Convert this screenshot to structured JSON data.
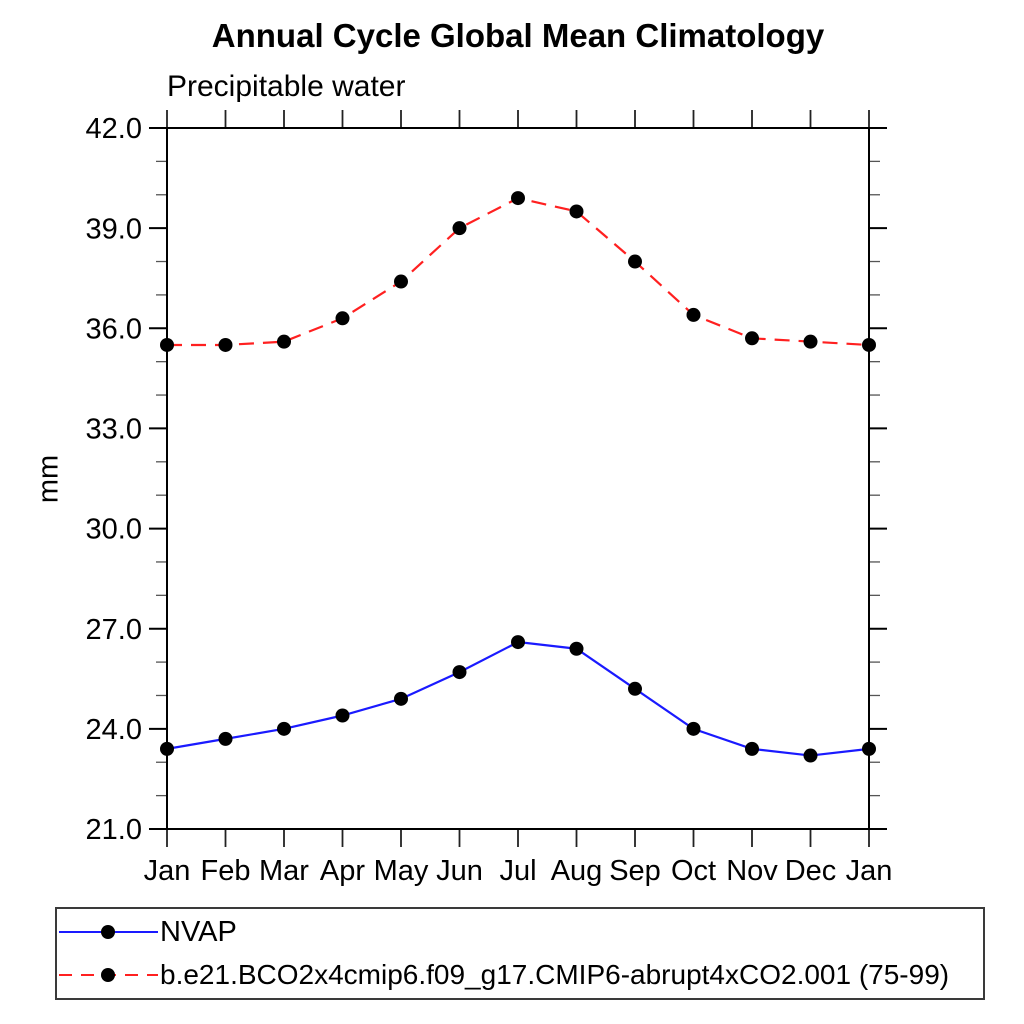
{
  "chart_data": {
    "type": "line",
    "title": "Annual Cycle Global Mean Climatology",
    "subtitle": "Precipitable water",
    "ylabel": "mm",
    "xlabel": "",
    "x_categories": [
      "Jan",
      "Feb",
      "Mar",
      "Apr",
      "May",
      "Jun",
      "Jul",
      "Aug",
      "Sep",
      "Oct",
      "Nov",
      "Dec",
      "Jan"
    ],
    "ylim": [
      21.0,
      42.0
    ],
    "y_major_ticks": [
      21.0,
      24.0,
      27.0,
      30.0,
      33.0,
      36.0,
      39.0,
      42.0
    ],
    "y_minor_step": 1.0,
    "grid": false,
    "legend_position": "bottom",
    "axis_color": "#000000",
    "minor_tick_color": "#555555",
    "series": [
      {
        "name": "NVAP",
        "color": "#1a1aff",
        "line_style": "solid",
        "marker": "filled-circle",
        "marker_color": "#000000",
        "values": [
          23.4,
          23.7,
          24.0,
          24.4,
          24.9,
          25.7,
          26.6,
          26.4,
          25.2,
          24.0,
          23.4,
          23.2,
          23.4
        ]
      },
      {
        "name": "b.e21.BCO2x4cmip6.f09_g17.CMIP6-abrupt4xCO2.001 (75-99)",
        "color": "#ff2020",
        "line_style": "dashed",
        "marker": "filled-circle",
        "marker_color": "#000000",
        "values": [
          35.5,
          35.5,
          35.6,
          36.3,
          37.4,
          39.0,
          39.9,
          39.5,
          38.0,
          36.4,
          35.7,
          35.6,
          35.5
        ]
      }
    ]
  }
}
